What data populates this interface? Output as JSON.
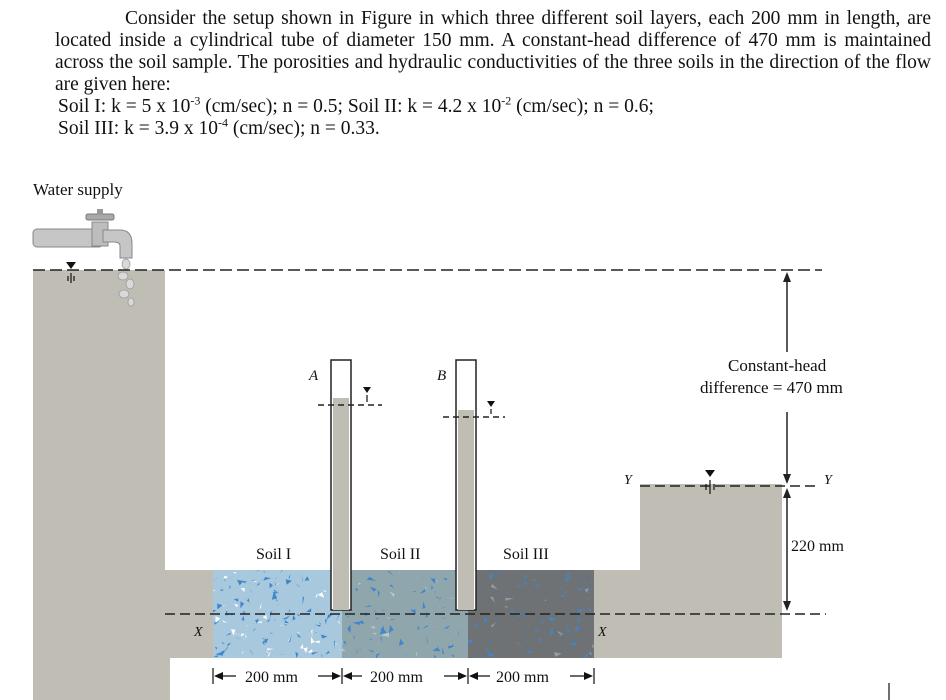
{
  "problem": {
    "paragraph": "Consider the setup shown in Figure in which three different soil layers, each 200 mm in length, are located inside a cylindrical tube of diameter 150 mm. A constant-head difference of 470 mm is maintained across the soil sample. The porosities and hydraulic conductivities of the three soils in the direction of the flow are given here:",
    "soil1": {
      "lead": "Soil I: k = 5 x 10",
      "exp": "-3",
      "tail": " (cm/sec); n = 0.5; "
    },
    "soil2": {
      "lead": "Soil II: k = 4.2 x 10",
      "exp": "-2",
      "tail": " (cm/sec); n = 0.6;"
    },
    "soil3": {
      "lead": "Soil III: k = 3.9 x 10",
      "exp": "-4",
      "tail": " (cm/sec); n = 0.33."
    }
  },
  "diagram": {
    "water_supply": "Water supply",
    "piezometer_a": "A",
    "piezometer_b": "B",
    "soil_labels": [
      "Soil I",
      "Soil II",
      "Soil III"
    ],
    "lengths": [
      "200 mm",
      "200 mm",
      "200 mm"
    ],
    "head_label_1": "Constant-head",
    "head_label_2": "difference = 470 mm",
    "tail_depth": "220 mm",
    "datum_x": "X",
    "datum_y": "Y"
  },
  "colors": {
    "water": "#c0bdb5",
    "soil1": "#a8c8de",
    "soil2": "#8fa6ad",
    "soil3": "#6f7275",
    "specks": "#3f86cc"
  }
}
